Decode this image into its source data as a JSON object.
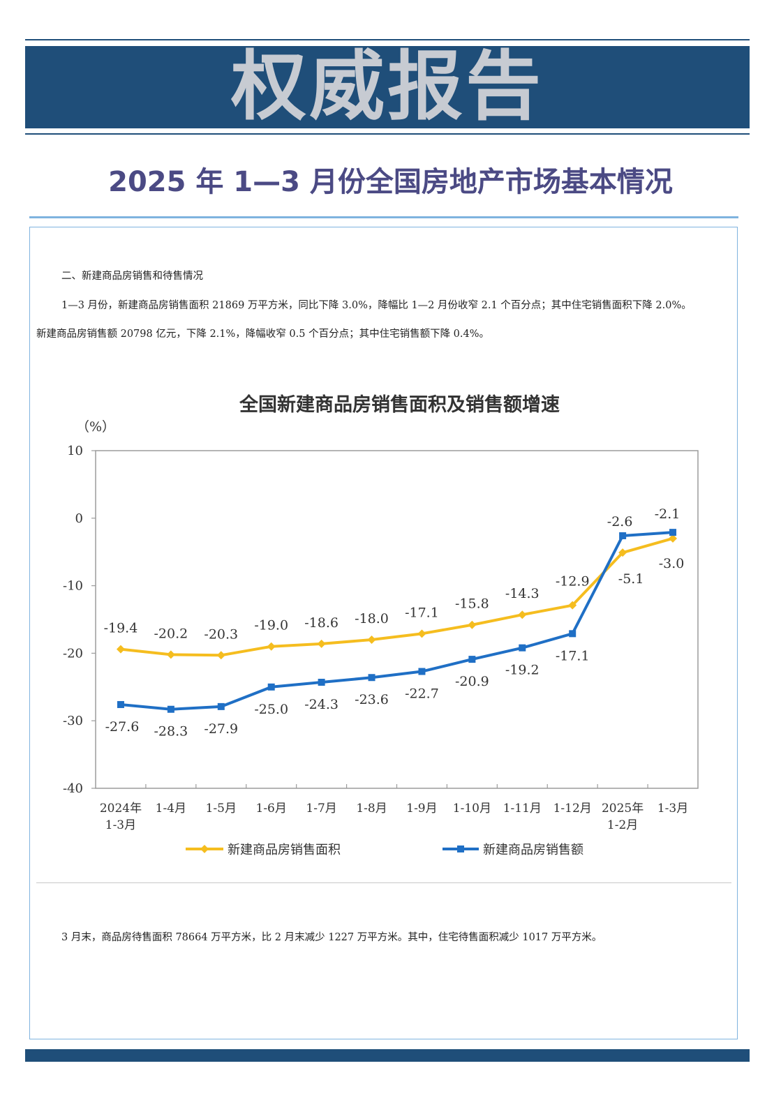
{
  "banner": {
    "text": "权威报告"
  },
  "report_title": "2025 年 1—3 月份全国房地产市场基本情况",
  "section": {
    "heading": "二、新建商品房销售和待售情况",
    "body_line_1": "1—3 月份，新建商品房销售面积 21869 万平方米，同比下降 3.0%，降幅比 1—2 月份收窄 2.1 个百分点；其中住宅销售面积下降 2.0%。",
    "body_line_2": "新建商品房销售额 20798 亿元，下降 2.1%，降幅收窄 0.5 个百分点；其中住宅销售额下降 0.4%。",
    "stock_line": "3 月末，商品房待售面积 78664 万平方米，比 2 月末减少 1227 万平方米。其中，住宅待售面积减少 1017 万平方米。"
  },
  "colors": {
    "banner": "#1f4e79",
    "title": "#4b4a84",
    "area_series": "#f5bd1f",
    "amount_series": "#1f6fc5"
  },
  "chart_data": {
    "type": "line",
    "title": "全国新建商品房销售面积及销售额增速",
    "ylabel": "（%）",
    "xlabel": "",
    "ylim": [
      -40,
      10
    ],
    "yticks": [
      10,
      0,
      -10,
      -20,
      -30,
      -40
    ],
    "categories": [
      [
        "2024年",
        "1-3月"
      ],
      [
        "1-4月"
      ],
      [
        "1-5月"
      ],
      [
        "1-6月"
      ],
      [
        "1-7月"
      ],
      [
        "1-8月"
      ],
      [
        "1-9月"
      ],
      [
        "1-10月"
      ],
      [
        "1-11月"
      ],
      [
        "1-12月"
      ],
      [
        "2025年",
        "1-2月"
      ],
      [
        "1-3月"
      ]
    ],
    "series": [
      {
        "name": "新建商品房销售面积",
        "color": "#f5bd1f",
        "marker": "diamond",
        "values": [
          -19.4,
          -20.2,
          -20.3,
          -19.0,
          -18.6,
          -18.0,
          -17.1,
          -15.8,
          -14.3,
          -12.9,
          -5.1,
          -3.0
        ]
      },
      {
        "name": "新建商品房销售额",
        "color": "#1f6fc5",
        "marker": "square",
        "values": [
          -27.6,
          -28.3,
          -27.9,
          -25.0,
          -24.3,
          -23.6,
          -22.7,
          -20.9,
          -19.2,
          -17.1,
          -2.6,
          -2.1
        ]
      }
    ],
    "legend_position": "bottom"
  }
}
